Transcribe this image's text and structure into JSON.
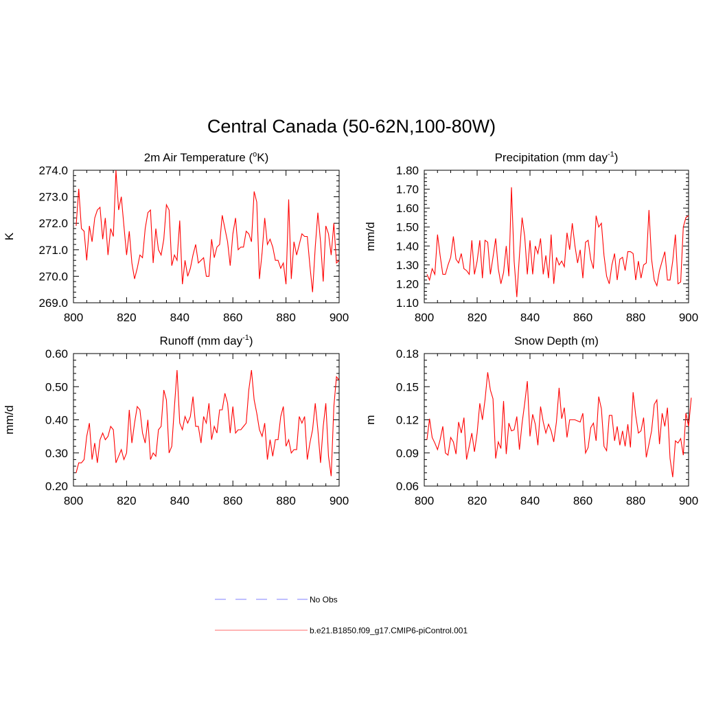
{
  "main_title": "Central Canada (50-62N,100-80W)",
  "colors": {
    "model_line": "#ff0000",
    "obs_line": "#9999ff",
    "axis": "#000000"
  },
  "legend": {
    "obs_label": "No Obs",
    "model_label": "b.e21.B1850.f09_g17.CMIP6-piControl.001"
  },
  "chart_data": [
    {
      "type": "line",
      "title": "2m Air Temperature (",
      "title_sup": "o",
      "title_tail": "K)",
      "ylabel": "K",
      "xlabel": "",
      "xlim": [
        800,
        900
      ],
      "ylim": [
        269.0,
        274.0
      ],
      "xticks": [
        800,
        820,
        840,
        860,
        880,
        900
      ],
      "yticks": [
        269.0,
        270.0,
        271.0,
        272.0,
        273.0,
        274.0
      ],
      "ytick_labels": [
        "269.0",
        "270.0",
        "271.0",
        "272.0",
        "273.0",
        "274.0"
      ],
      "x_start": 801,
      "series": [
        {
          "name": "b.e21.B1850.f09_g17.CMIP6-piControl.001",
          "values": [
            271.9,
            273.3,
            271.8,
            271.7,
            270.6,
            271.9,
            271.3,
            272.2,
            272.5,
            272.6,
            271.4,
            272.2,
            270.8,
            271.8,
            271.5,
            274.0,
            272.5,
            273.0,
            271.9,
            270.8,
            271.7,
            270.5,
            269.9,
            270.3,
            270.8,
            270.7,
            271.8,
            272.4,
            272.5,
            270.5,
            271.8,
            271.0,
            270.8,
            271.4,
            272.7,
            272.5,
            270.4,
            270.8,
            270.6,
            272.1,
            269.7,
            270.6,
            270.0,
            270.3,
            270.8,
            271.2,
            270.5,
            270.6,
            270.7,
            270.0,
            270.0,
            271.4,
            270.7,
            271.1,
            271.2,
            272.3,
            271.8,
            271.3,
            270.4,
            271.6,
            272.2,
            271.0,
            271.1,
            271.1,
            271.7,
            271.6,
            271.3,
            273.2,
            272.8,
            269.9,
            270.9,
            272.2,
            271.2,
            271.4,
            271.1,
            270.6,
            270.6,
            270.3,
            270.5,
            269.7,
            272.9,
            269.9,
            271.3,
            270.8,
            271.2,
            271.6,
            271.5,
            271.5,
            270.4,
            269.4,
            271.1,
            272.4,
            271.3,
            269.8,
            271.9,
            271.6,
            270.8,
            272.0,
            270.5,
            270.6
          ]
        }
      ]
    },
    {
      "type": "line",
      "title": "Precipitation (mm day",
      "title_sup": "-1",
      "title_tail": ")",
      "ylabel": "mm/d",
      "xlabel": "",
      "xlim": [
        800,
        900
      ],
      "ylim": [
        1.1,
        1.8
      ],
      "xticks": [
        800,
        820,
        840,
        860,
        880,
        900
      ],
      "yticks": [
        1.1,
        1.2,
        1.3,
        1.4,
        1.5,
        1.6,
        1.7,
        1.8
      ],
      "ytick_labels": [
        "1.10",
        "1.20",
        "1.30",
        "1.40",
        "1.50",
        "1.60",
        "1.70",
        "1.80"
      ],
      "x_start": 801,
      "series": [
        {
          "name": "b.e21.B1850.f09_g17.CMIP6-piControl.001",
          "values": [
            1.25,
            1.22,
            1.28,
            1.25,
            1.46,
            1.35,
            1.25,
            1.25,
            1.3,
            1.34,
            1.45,
            1.33,
            1.31,
            1.36,
            1.28,
            1.27,
            1.25,
            1.43,
            1.25,
            1.32,
            1.43,
            1.23,
            1.43,
            1.42,
            1.25,
            1.34,
            1.44,
            1.28,
            1.2,
            1.26,
            1.4,
            1.24,
            1.71,
            1.32,
            1.13,
            1.35,
            1.55,
            1.45,
            1.25,
            1.43,
            1.25,
            1.4,
            1.36,
            1.44,
            1.25,
            1.35,
            1.23,
            1.46,
            1.2,
            1.34,
            1.3,
            1.32,
            1.29,
            1.47,
            1.38,
            1.52,
            1.4,
            1.31,
            1.38,
            1.23,
            1.42,
            1.43,
            1.33,
            1.28,
            1.56,
            1.5,
            1.52,
            1.35,
            1.24,
            1.2,
            1.3,
            1.36,
            1.22,
            1.33,
            1.34,
            1.27,
            1.37,
            1.37,
            1.36,
            1.22,
            1.32,
            1.23,
            1.3,
            1.31,
            1.59,
            1.33,
            1.22,
            1.19,
            1.27,
            1.32,
            1.37,
            1.22,
            1.22,
            1.32,
            1.46,
            1.2,
            1.21,
            1.5,
            1.55,
            1.56
          ]
        }
      ]
    },
    {
      "type": "line",
      "title": "Runoff (mm day",
      "title_sup": "-1",
      "title_tail": ")",
      "ylabel": "mm/d",
      "xlabel": "",
      "xlim": [
        800,
        900
      ],
      "ylim": [
        0.2,
        0.6
      ],
      "xticks": [
        800,
        820,
        840,
        860,
        880,
        900
      ],
      "yticks": [
        0.2,
        0.3,
        0.4,
        0.5,
        0.6
      ],
      "ytick_labels": [
        "0.20",
        "0.30",
        "0.40",
        "0.50",
        "0.60"
      ],
      "x_start": 801,
      "series": [
        {
          "name": "b.e21.B1850.f09_g17.CMIP6-piControl.001",
          "values": [
            0.24,
            0.27,
            0.27,
            0.28,
            0.35,
            0.39,
            0.28,
            0.33,
            0.27,
            0.34,
            0.36,
            0.34,
            0.35,
            0.38,
            0.37,
            0.27,
            0.29,
            0.31,
            0.28,
            0.3,
            0.43,
            0.33,
            0.39,
            0.44,
            0.43,
            0.36,
            0.33,
            0.4,
            0.28,
            0.3,
            0.29,
            0.37,
            0.38,
            0.49,
            0.46,
            0.3,
            0.32,
            0.44,
            0.55,
            0.39,
            0.37,
            0.41,
            0.39,
            0.41,
            0.47,
            0.38,
            0.38,
            0.33,
            0.41,
            0.39,
            0.45,
            0.34,
            0.38,
            0.36,
            0.43,
            0.43,
            0.48,
            0.45,
            0.36,
            0.44,
            0.36,
            0.37,
            0.37,
            0.38,
            0.39,
            0.49,
            0.55,
            0.46,
            0.42,
            0.37,
            0.35,
            0.39,
            0.28,
            0.34,
            0.29,
            0.34,
            0.34,
            0.41,
            0.44,
            0.32,
            0.34,
            0.3,
            0.31,
            0.31,
            0.41,
            0.39,
            0.41,
            0.28,
            0.33,
            0.37,
            0.45,
            0.37,
            0.27,
            0.38,
            0.45,
            0.29,
            0.23,
            0.44,
            0.53,
            0.52
          ]
        }
      ]
    },
    {
      "type": "line",
      "title": "Snow Depth (m)",
      "title_sup": "",
      "title_tail": "",
      "ylabel": "m",
      "xlabel": "",
      "xlim": [
        800,
        900
      ],
      "ylim": [
        0.06,
        0.18
      ],
      "xticks": [
        800,
        820,
        840,
        860,
        880,
        900
      ],
      "yticks": [
        0.06,
        0.09,
        0.12,
        0.15,
        0.18
      ],
      "ytick_labels": [
        "0.06",
        "0.09",
        "0.12",
        "0.15",
        "0.18"
      ],
      "x_start": 801,
      "series": [
        {
          "name": "b.e21.B1850.f09_g17.CMIP6-piControl.001",
          "values": [
            0.102,
            0.121,
            0.104,
            0.099,
            0.093,
            0.102,
            0.114,
            0.09,
            0.088,
            0.104,
            0.1,
            0.089,
            0.118,
            0.108,
            0.122,
            0.084,
            0.096,
            0.108,
            0.091,
            0.108,
            0.135,
            0.12,
            0.138,
            0.163,
            0.147,
            0.139,
            0.085,
            0.1,
            0.094,
            0.137,
            0.089,
            0.117,
            0.11,
            0.111,
            0.123,
            0.093,
            0.117,
            0.135,
            0.155,
            0.105,
            0.125,
            0.116,
            0.097,
            0.132,
            0.118,
            0.108,
            0.116,
            0.11,
            0.1,
            0.118,
            0.149,
            0.121,
            0.131,
            0.104,
            0.12,
            0.12,
            0.12,
            0.119,
            0.118,
            0.126,
            0.09,
            0.095,
            0.113,
            0.117,
            0.101,
            0.141,
            0.13,
            0.096,
            0.092,
            0.124,
            0.124,
            0.101,
            0.114,
            0.097,
            0.11,
            0.096,
            0.116,
            0.095,
            0.145,
            0.124,
            0.108,
            0.11,
            0.122,
            0.086,
            0.098,
            0.11,
            0.134,
            0.138,
            0.098,
            0.126,
            0.114,
            0.131,
            0.085,
            0.068,
            0.101,
            0.099,
            0.103,
            0.088,
            0.126,
            0.114,
            0.14
          ]
        }
      ]
    }
  ]
}
